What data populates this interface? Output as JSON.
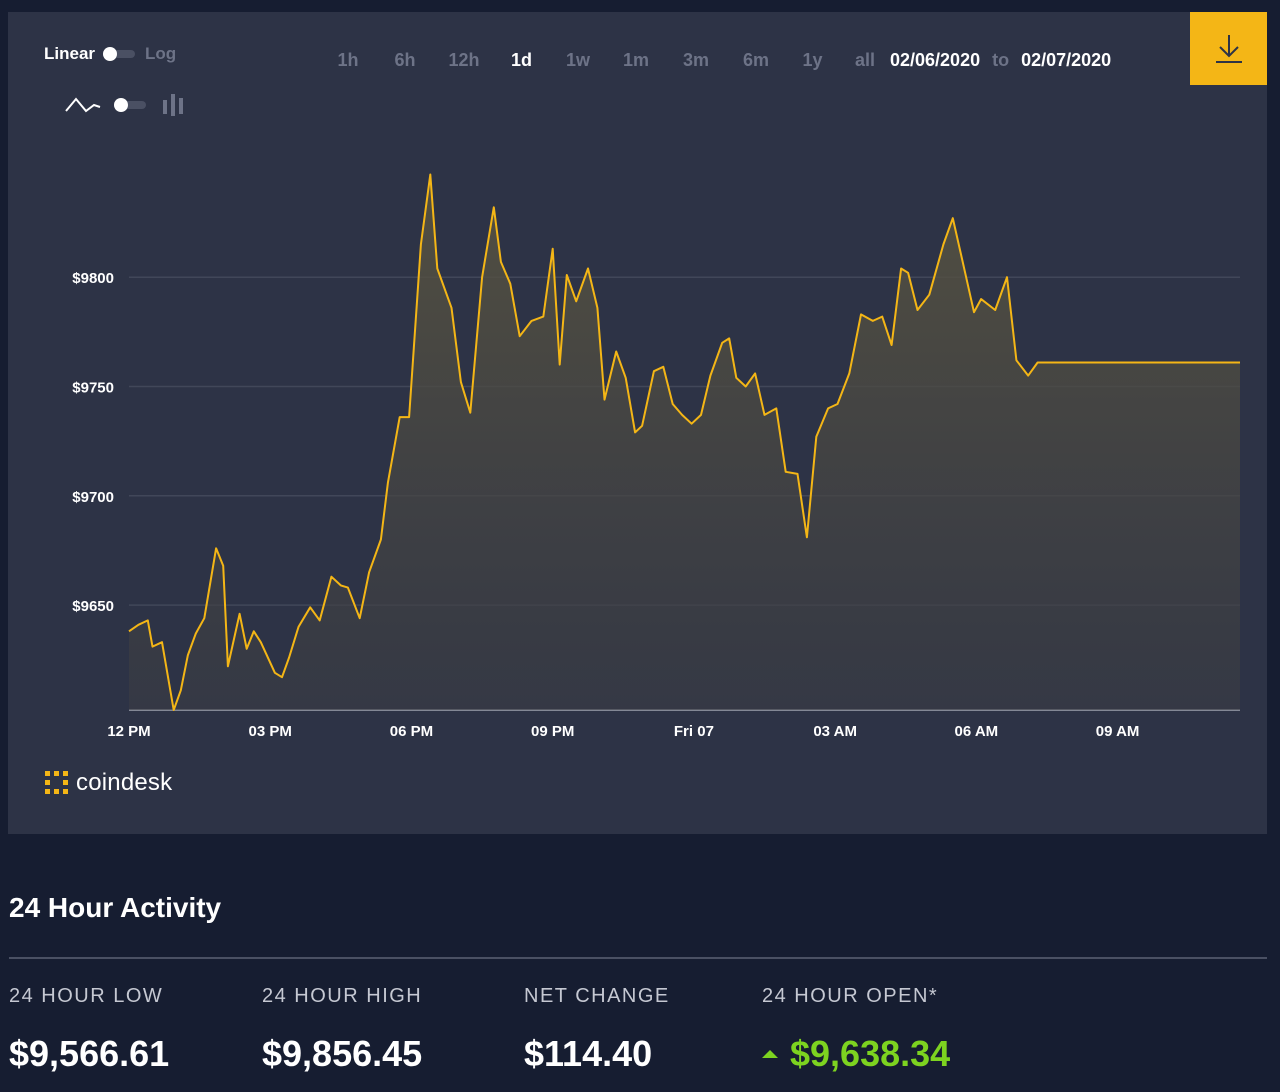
{
  "controls": {
    "scale_linear": "Linear",
    "scale_log": "Log",
    "ranges": [
      "1h",
      "6h",
      "12h",
      "1d",
      "1w",
      "1m",
      "3m",
      "6m",
      "1y",
      "all"
    ],
    "active_range": "1d",
    "date_from": "02/06/2020",
    "date_to_word": "to",
    "date_to": "02/07/2020"
  },
  "brand": {
    "logo_text": "coindesk"
  },
  "activity": {
    "title": "24 Hour Activity",
    "stats": [
      {
        "label": "24 HOUR LOW",
        "value": "$9,566.61"
      },
      {
        "label": "24 HOUR HIGH",
        "value": "$9,856.45"
      },
      {
        "label": "NET CHANGE",
        "value": "$114.40"
      },
      {
        "label": "24 HOUR OPEN*",
        "value": "$9,638.34"
      }
    ]
  },
  "colors": {
    "line": "#f4b616",
    "accent": "#f4b616",
    "positive": "#7dd320",
    "panel": "#2d3346",
    "page": "#161d31"
  },
  "chart_data": {
    "type": "area",
    "title": "",
    "xlabel": "",
    "ylabel": "",
    "x_ticks": [
      {
        "hour": 0,
        "label": "12 PM"
      },
      {
        "hour": 3,
        "label": "03 PM"
      },
      {
        "hour": 6,
        "label": "06 PM"
      },
      {
        "hour": 9,
        "label": "09 PM"
      },
      {
        "hour": 12,
        "label": "Fri 07"
      },
      {
        "hour": 15,
        "label": "03 AM"
      },
      {
        "hour": 18,
        "label": "06 AM"
      },
      {
        "hour": 21,
        "label": "09 AM"
      }
    ],
    "y_ticks": [
      {
        "value": 9650,
        "label": "$9650"
      },
      {
        "value": 9700,
        "label": "$9700"
      },
      {
        "value": 9750,
        "label": "$9750"
      },
      {
        "value": 9800,
        "label": "$9800"
      }
    ],
    "xlim": [
      0,
      23.6
    ],
    "ylim": [
      9602,
      9855
    ],
    "grid": true,
    "series": [
      {
        "x": [
          0,
          0.2,
          0.4,
          0.5,
          0.7,
          0.95,
          1.1,
          1.25,
          1.42,
          1.6,
          1.85,
          2.0,
          2.1,
          2.35,
          2.5,
          2.65,
          2.8,
          3.1,
          3.25,
          3.4,
          3.6,
          3.85,
          4.05,
          4.3,
          4.5,
          4.65,
          4.9,
          5.1,
          5.35,
          5.5,
          5.75,
          5.95,
          6.2,
          6.4,
          6.55,
          6.85,
          7.05,
          7.25,
          7.5,
          7.75,
          7.9,
          8.1,
          8.3,
          8.55,
          8.8,
          9.0,
          9.15,
          9.3,
          9.5,
          9.75,
          9.95,
          10.1,
          10.35,
          10.55,
          10.75,
          10.9,
          11.15,
          11.35,
          11.55,
          11.75,
          11.95,
          12.15,
          12.35,
          12.6,
          12.75,
          12.9,
          13.1,
          13.3,
          13.5,
          13.75,
          13.95,
          14.2,
          14.4,
          14.6,
          14.85,
          15.05,
          15.3,
          15.55,
          15.8,
          16.0,
          16.2,
          16.4,
          16.55,
          16.75,
          17.0,
          17.3,
          17.5,
          17.7,
          17.95,
          18.1,
          18.4,
          18.65,
          18.85,
          19.1,
          19.3,
          19.6,
          19.75,
          19.95,
          20.15,
          20.45,
          20.65,
          20.85,
          21.05,
          21.4,
          21.55,
          21.75,
          22.0,
          22.3,
          22.5,
          22.7,
          22.9,
          23.1,
          23.35,
          23.6
        ],
        "y": [
          9638,
          9641,
          9643,
          9631,
          9633,
          9602,
          9611,
          9627,
          9637,
          9644,
          9676,
          9668,
          9622,
          9646,
          9630,
          9638,
          9633,
          9619,
          9617,
          9626,
          9640,
          9649,
          9643,
          9663,
          9659,
          9658,
          9644,
          9665,
          9680,
          9706,
          9736,
          9736,
          9815,
          9847,
          9804,
          9786,
          9752,
          9738,
          9800,
          9832,
          9807,
          9797,
          9773,
          9780,
          9782,
          9813,
          9760,
          9801,
          9789,
          9804,
          9786,
          9744,
          9766,
          9754,
          9729,
          9732,
          9757,
          9759,
          9742,
          9737,
          9733,
          9737,
          9755,
          9770,
          9772,
          9754,
          9750,
          9756,
          9737,
          9740,
          9711,
          9710,
          9681,
          9727,
          9740,
          9742,
          9756,
          9783,
          9780,
          9782,
          9769,
          9804,
          9802,
          9785,
          9792,
          9815,
          9827,
          9808,
          9784,
          9790,
          9785,
          9800,
          9762,
          9755,
          9761,
          9761,
          9761,
          9761,
          9761,
          9761,
          9761,
          9761,
          9761,
          9761,
          9761,
          9761,
          9761,
          9761,
          9761,
          9761,
          9761,
          9761,
          9761,
          9761
        ]
      }
    ]
  }
}
